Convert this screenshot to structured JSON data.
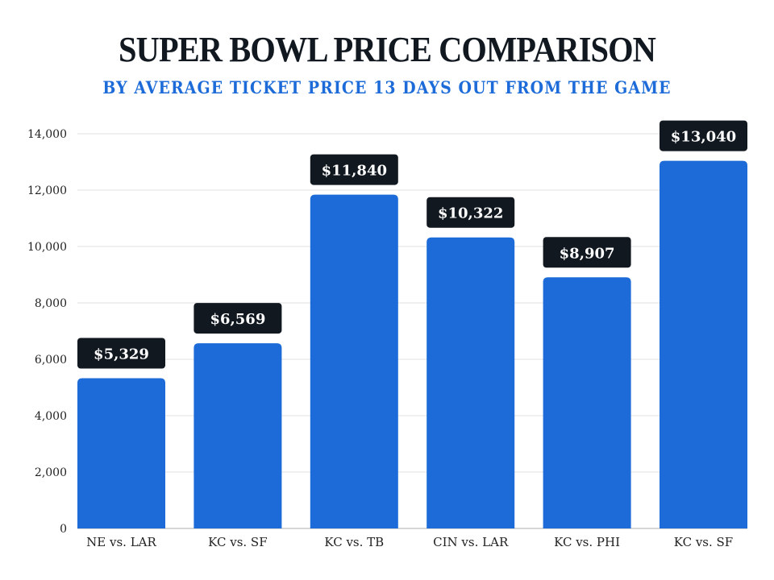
{
  "chart_data": {
    "type": "bar",
    "title": "SUPER BOWL PRICE COMPARISON",
    "subtitle": "BY AVERAGE TICKET PRICE 13 DAYS OUT FROM THE GAME",
    "xlabel": "",
    "ylabel": "",
    "categories": [
      "NE vs. LAR",
      "KC vs. SF",
      "KC vs. TB",
      "CIN vs. LAR",
      "KC vs. PHI",
      "KC vs. SF"
    ],
    "values": [
      5329,
      6569,
      11840,
      10322,
      8907,
      13040
    ],
    "value_labels": [
      "$5,329",
      "$6,569",
      "$11,840",
      "$10,322",
      "$8,907",
      "$13,040"
    ],
    "yticks": [
      0,
      2000,
      4000,
      6000,
      8000,
      10000,
      12000,
      14000
    ],
    "ytick_labels": [
      "0",
      "2,000",
      "4,000",
      "6,000",
      "8,000",
      "10,000",
      "12,000",
      "14,000"
    ],
    "ylim": [
      0,
      14000
    ],
    "grid": true,
    "legend": "none",
    "colors": {
      "bar": "#1C6BD8",
      "label_bg": "#111820",
      "label_text": "#ffffff",
      "grid": "#e2e2e2",
      "title": "#111820",
      "subtitle": "#1C6BD8"
    }
  }
}
